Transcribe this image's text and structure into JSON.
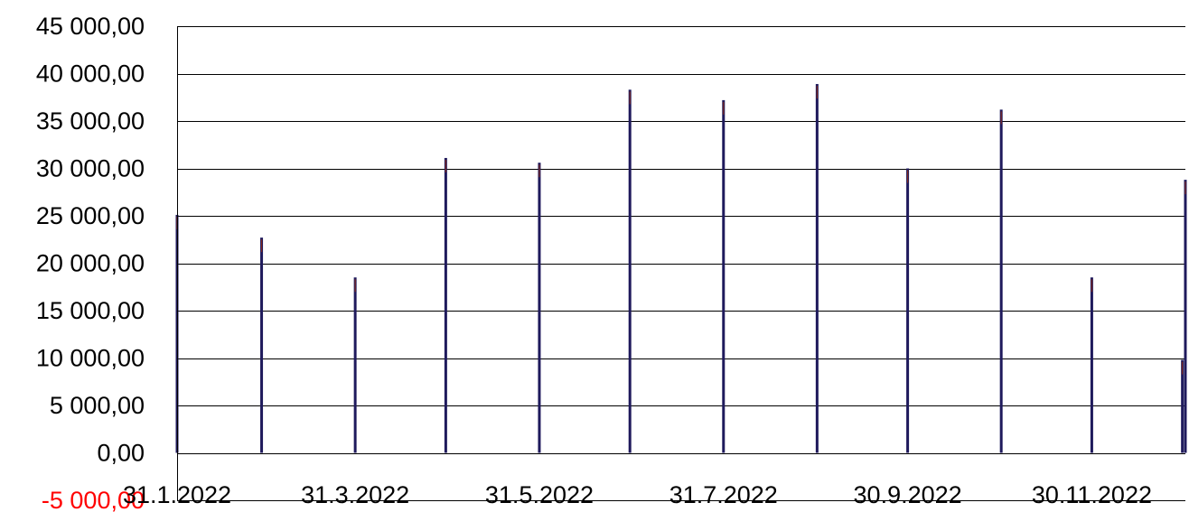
{
  "chart_data": {
    "type": "bar",
    "x_dates": [
      "2022-01-31",
      "2022-02-28",
      "2022-03-31",
      "2022-04-30",
      "2022-05-31",
      "2022-06-30",
      "2022-07-31",
      "2022-08-31",
      "2022-09-30",
      "2022-10-31",
      "2022-11-30",
      "2022-12-31",
      "2022-12-30"
    ],
    "values": [
      25100,
      22700,
      18500,
      31100,
      30600,
      38300,
      37200,
      38900,
      30000,
      36200,
      18500,
      28800,
      9800
    ],
    "x_tick_labels": [
      "31.1.2022",
      "31.3.2022",
      "31.5.2022",
      "31.7.2022",
      "30.9.2022",
      "30.11.2022"
    ],
    "x_tick_dates": [
      "2022-01-31",
      "2022-03-31",
      "2022-05-31",
      "2022-07-31",
      "2022-09-30",
      "2022-11-30"
    ],
    "y_tick_labels": [
      "-5 000,00",
      "0,00",
      "5 000,00",
      "10 000,00",
      "15 000,00",
      "20 000,00",
      "25 000,00",
      "30 000,00",
      "35 000,00",
      "40 000,00",
      "45 000,00"
    ],
    "y_ticks": [
      -5000,
      0,
      5000,
      10000,
      15000,
      20000,
      25000,
      30000,
      35000,
      40000,
      45000
    ],
    "ylim": [
      -5000,
      45000
    ],
    "xlim": [
      "2022-01-31",
      "2022-12-31"
    ],
    "grid": true,
    "negative_label_color": "#ff0000",
    "bar_color": "#1f1a5c",
    "bar_highlight_color": "#8b2a1a",
    "title": "",
    "xlabel": "",
    "ylabel": ""
  }
}
